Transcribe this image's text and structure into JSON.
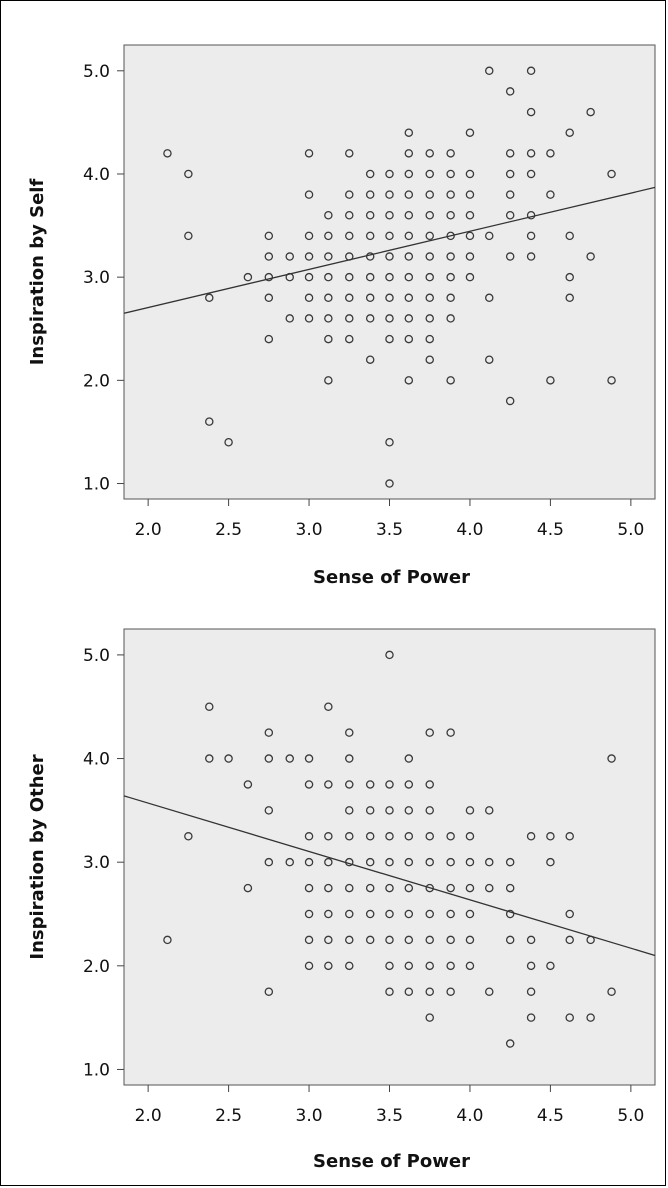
{
  "chart_data": [
    {
      "type": "scatter",
      "title": "",
      "xlabel": "Sense of Power",
      "ylabel": "Inspiration by Self",
      "xlim": [
        1.85,
        5.15
      ],
      "ylim": [
        0.85,
        5.25
      ],
      "xticks": [
        "2.0",
        "2.5",
        "3.0",
        "3.5",
        "4.0",
        "4.5",
        "5.0"
      ],
      "yticks": [
        "1.0",
        "2.0",
        "3.0",
        "4.0",
        "5.0"
      ],
      "grid": false,
      "regression_line": {
        "x": [
          1.85,
          5.15
        ],
        "y": [
          2.65,
          3.87
        ]
      },
      "points": [
        [
          2.12,
          4.2
        ],
        [
          2.25,
          4.0
        ],
        [
          2.25,
          3.4
        ],
        [
          2.38,
          2.8
        ],
        [
          2.38,
          1.6
        ],
        [
          2.5,
          1.4
        ],
        [
          2.62,
          3.0
        ],
        [
          2.75,
          3.4
        ],
        [
          2.75,
          3.2
        ],
        [
          2.75,
          3.0
        ],
        [
          2.75,
          2.8
        ],
        [
          2.75,
          2.4
        ],
        [
          2.88,
          3.2
        ],
        [
          2.88,
          3.0
        ],
        [
          2.88,
          2.6
        ],
        [
          3.0,
          4.2
        ],
        [
          3.0,
          3.8
        ],
        [
          3.0,
          3.4
        ],
        [
          3.0,
          3.2
        ],
        [
          3.0,
          3.0
        ],
        [
          3.0,
          2.8
        ],
        [
          3.0,
          2.6
        ],
        [
          3.12,
          3.6
        ],
        [
          3.12,
          3.4
        ],
        [
          3.12,
          3.2
        ],
        [
          3.12,
          3.0
        ],
        [
          3.12,
          2.8
        ],
        [
          3.12,
          2.6
        ],
        [
          3.12,
          2.4
        ],
        [
          3.12,
          2.0
        ],
        [
          3.25,
          4.2
        ],
        [
          3.25,
          3.8
        ],
        [
          3.25,
          3.6
        ],
        [
          3.25,
          3.4
        ],
        [
          3.25,
          3.2
        ],
        [
          3.25,
          3.0
        ],
        [
          3.25,
          2.8
        ],
        [
          3.25,
          2.6
        ],
        [
          3.25,
          2.4
        ],
        [
          3.38,
          4.0
        ],
        [
          3.38,
          3.8
        ],
        [
          3.38,
          3.6
        ],
        [
          3.38,
          3.4
        ],
        [
          3.38,
          3.2
        ],
        [
          3.38,
          3.0
        ],
        [
          3.38,
          2.8
        ],
        [
          3.38,
          2.6
        ],
        [
          3.38,
          2.2
        ],
        [
          3.5,
          4.0
        ],
        [
          3.5,
          3.8
        ],
        [
          3.5,
          3.6
        ],
        [
          3.5,
          3.4
        ],
        [
          3.5,
          3.2
        ],
        [
          3.5,
          3.0
        ],
        [
          3.5,
          2.8
        ],
        [
          3.5,
          2.6
        ],
        [
          3.5,
          2.4
        ],
        [
          3.5,
          1.4
        ],
        [
          3.5,
          1.0
        ],
        [
          3.62,
          4.4
        ],
        [
          3.62,
          4.2
        ],
        [
          3.62,
          4.0
        ],
        [
          3.62,
          3.8
        ],
        [
          3.62,
          3.6
        ],
        [
          3.62,
          3.4
        ],
        [
          3.62,
          3.2
        ],
        [
          3.62,
          3.0
        ],
        [
          3.62,
          2.8
        ],
        [
          3.62,
          2.6
        ],
        [
          3.62,
          2.4
        ],
        [
          3.62,
          2.0
        ],
        [
          3.75,
          4.2
        ],
        [
          3.75,
          4.0
        ],
        [
          3.75,
          3.8
        ],
        [
          3.75,
          3.6
        ],
        [
          3.75,
          3.4
        ],
        [
          3.75,
          3.2
        ],
        [
          3.75,
          3.0
        ],
        [
          3.75,
          2.8
        ],
        [
          3.75,
          2.6
        ],
        [
          3.75,
          2.4
        ],
        [
          3.75,
          2.2
        ],
        [
          3.88,
          4.2
        ],
        [
          3.88,
          4.0
        ],
        [
          3.88,
          3.8
        ],
        [
          3.88,
          3.6
        ],
        [
          3.88,
          3.4
        ],
        [
          3.88,
          3.2
        ],
        [
          3.88,
          3.0
        ],
        [
          3.88,
          2.8
        ],
        [
          3.88,
          2.6
        ],
        [
          3.88,
          2.0
        ],
        [
          4.0,
          4.4
        ],
        [
          4.0,
          4.0
        ],
        [
          4.0,
          3.8
        ],
        [
          4.0,
          3.6
        ],
        [
          4.0,
          3.4
        ],
        [
          4.0,
          3.2
        ],
        [
          4.0,
          3.0
        ],
        [
          4.12,
          5.0
        ],
        [
          4.12,
          3.4
        ],
        [
          4.12,
          2.8
        ],
        [
          4.12,
          2.2
        ],
        [
          4.25,
          4.8
        ],
        [
          4.25,
          4.2
        ],
        [
          4.25,
          4.0
        ],
        [
          4.25,
          3.8
        ],
        [
          4.25,
          3.6
        ],
        [
          4.25,
          3.2
        ],
        [
          4.25,
          1.8
        ],
        [
          4.38,
          5.0
        ],
        [
          4.38,
          4.6
        ],
        [
          4.38,
          4.2
        ],
        [
          4.38,
          4.0
        ],
        [
          4.38,
          3.6
        ],
        [
          4.38,
          3.4
        ],
        [
          4.38,
          3.2
        ],
        [
          4.5,
          4.2
        ],
        [
          4.5,
          3.8
        ],
        [
          4.5,
          2.0
        ],
        [
          4.62,
          4.4
        ],
        [
          4.62,
          3.4
        ],
        [
          4.62,
          3.0
        ],
        [
          4.62,
          2.8
        ],
        [
          4.75,
          4.6
        ],
        [
          4.75,
          3.2
        ],
        [
          4.88,
          4.0
        ],
        [
          4.88,
          2.0
        ]
      ]
    },
    {
      "type": "scatter",
      "title": "",
      "xlabel": "Sense of Power",
      "ylabel": "Inspiration by Other",
      "xlim": [
        1.85,
        5.15
      ],
      "ylim": [
        0.85,
        5.25
      ],
      "xticks": [
        "2.0",
        "2.5",
        "3.0",
        "3.5",
        "4.0",
        "4.5",
        "5.0"
      ],
      "yticks": [
        "1.0",
        "2.0",
        "3.0",
        "4.0",
        "5.0"
      ],
      "grid": false,
      "regression_line": {
        "x": [
          1.85,
          5.15
        ],
        "y": [
          3.64,
          2.1
        ]
      },
      "points": [
        [
          2.12,
          2.25
        ],
        [
          2.25,
          3.25
        ],
        [
          2.38,
          4.5
        ],
        [
          2.38,
          4.0
        ],
        [
          2.5,
          4.0
        ],
        [
          2.62,
          3.75
        ],
        [
          2.62,
          2.75
        ],
        [
          2.75,
          4.25
        ],
        [
          2.75,
          4.0
        ],
        [
          2.75,
          3.5
        ],
        [
          2.75,
          3.0
        ],
        [
          2.75,
          1.75
        ],
        [
          2.88,
          4.0
        ],
        [
          2.88,
          3.0
        ],
        [
          3.0,
          4.0
        ],
        [
          3.0,
          3.75
        ],
        [
          3.0,
          3.25
        ],
        [
          3.0,
          3.0
        ],
        [
          3.0,
          2.75
        ],
        [
          3.0,
          2.5
        ],
        [
          3.0,
          2.25
        ],
        [
          3.0,
          2.0
        ],
        [
          3.12,
          4.5
        ],
        [
          3.12,
          3.75
        ],
        [
          3.12,
          3.25
        ],
        [
          3.12,
          3.0
        ],
        [
          3.12,
          2.75
        ],
        [
          3.12,
          2.5
        ],
        [
          3.12,
          2.25
        ],
        [
          3.12,
          2.0
        ],
        [
          3.25,
          4.25
        ],
        [
          3.25,
          4.0
        ],
        [
          3.25,
          3.75
        ],
        [
          3.25,
          3.5
        ],
        [
          3.25,
          3.25
        ],
        [
          3.25,
          3.0
        ],
        [
          3.25,
          2.75
        ],
        [
          3.25,
          2.5
        ],
        [
          3.25,
          2.25
        ],
        [
          3.25,
          2.0
        ],
        [
          3.38,
          3.75
        ],
        [
          3.38,
          3.5
        ],
        [
          3.38,
          3.25
        ],
        [
          3.38,
          3.0
        ],
        [
          3.38,
          2.75
        ],
        [
          3.38,
          2.5
        ],
        [
          3.38,
          2.25
        ],
        [
          3.5,
          5.0
        ],
        [
          3.5,
          3.75
        ],
        [
          3.5,
          3.5
        ],
        [
          3.5,
          3.25
        ],
        [
          3.5,
          3.0
        ],
        [
          3.5,
          2.75
        ],
        [
          3.5,
          2.5
        ],
        [
          3.5,
          2.25
        ],
        [
          3.5,
          2.0
        ],
        [
          3.5,
          1.75
        ],
        [
          3.62,
          4.0
        ],
        [
          3.62,
          3.75
        ],
        [
          3.62,
          3.5
        ],
        [
          3.62,
          3.25
        ],
        [
          3.62,
          3.0
        ],
        [
          3.62,
          2.75
        ],
        [
          3.62,
          2.5
        ],
        [
          3.62,
          2.25
        ],
        [
          3.62,
          2.0
        ],
        [
          3.62,
          1.75
        ],
        [
          3.75,
          4.25
        ],
        [
          3.75,
          3.75
        ],
        [
          3.75,
          3.5
        ],
        [
          3.75,
          3.25
        ],
        [
          3.75,
          3.0
        ],
        [
          3.75,
          2.75
        ],
        [
          3.75,
          2.5
        ],
        [
          3.75,
          2.25
        ],
        [
          3.75,
          2.0
        ],
        [
          3.75,
          1.75
        ],
        [
          3.75,
          1.5
        ],
        [
          3.88,
          4.25
        ],
        [
          3.88,
          3.25
        ],
        [
          3.88,
          3.0
        ],
        [
          3.88,
          2.75
        ],
        [
          3.88,
          2.5
        ],
        [
          3.88,
          2.25
        ],
        [
          3.88,
          2.0
        ],
        [
          3.88,
          1.75
        ],
        [
          4.0,
          3.5
        ],
        [
          4.0,
          3.25
        ],
        [
          4.0,
          3.0
        ],
        [
          4.0,
          2.75
        ],
        [
          4.0,
          2.5
        ],
        [
          4.0,
          2.25
        ],
        [
          4.0,
          2.0
        ],
        [
          4.12,
          3.5
        ],
        [
          4.12,
          3.0
        ],
        [
          4.12,
          2.75
        ],
        [
          4.12,
          1.75
        ],
        [
          4.25,
          3.0
        ],
        [
          4.25,
          2.75
        ],
        [
          4.25,
          2.5
        ],
        [
          4.25,
          2.25
        ],
        [
          4.25,
          1.25
        ],
        [
          4.38,
          3.25
        ],
        [
          4.38,
          2.25
        ],
        [
          4.38,
          2.0
        ],
        [
          4.38,
          1.75
        ],
        [
          4.38,
          1.5
        ],
        [
          4.5,
          3.25
        ],
        [
          4.5,
          3.0
        ],
        [
          4.5,
          2.0
        ],
        [
          4.62,
          3.25
        ],
        [
          4.62,
          2.5
        ],
        [
          4.62,
          2.25
        ],
        [
          4.62,
          1.5
        ],
        [
          4.75,
          2.25
        ],
        [
          4.75,
          1.5
        ],
        [
          4.88,
          4.0
        ],
        [
          4.88,
          1.75
        ]
      ]
    }
  ]
}
